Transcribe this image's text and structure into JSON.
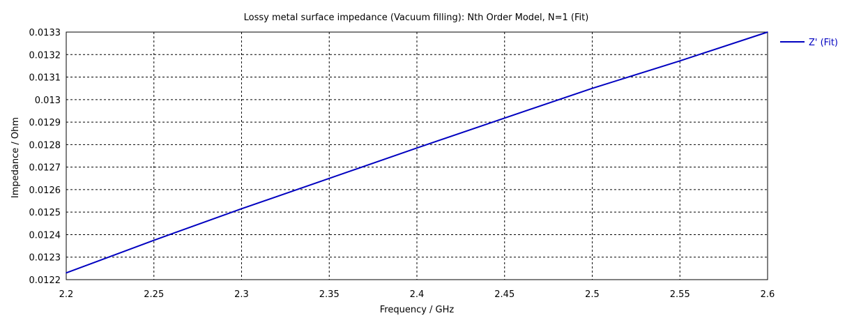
{
  "chart_data": {
    "type": "line",
    "title": "Lossy metal surface impedance (Vacuum filling): Nth Order Model, N=1 (Fit)",
    "xlabel": "Frequency / GHz",
    "ylabel": "Impedance / Ohm",
    "xlim": [
      2.2,
      2.6
    ],
    "ylim": [
      0.0122,
      0.0133
    ],
    "x_ticks": [
      "2.2",
      "2.25",
      "2.3",
      "2.35",
      "2.4",
      "2.45",
      "2.5",
      "2.55",
      "2.6"
    ],
    "y_ticks": [
      "0.0122",
      "0.0123",
      "0.0124",
      "0.0125",
      "0.0126",
      "0.0127",
      "0.0128",
      "0.0129",
      "0.013",
      "0.0131",
      "0.0132",
      "0.0133"
    ],
    "grid": true,
    "legend_position": "right",
    "series": [
      {
        "name": "Z' (Fit)",
        "color": "#0000c0",
        "x": [
          2.2,
          2.25,
          2.3,
          2.35,
          2.4,
          2.45,
          2.5,
          2.55,
          2.6
        ],
        "y": [
          0.01223,
          0.012375,
          0.012515,
          0.01265,
          0.012785,
          0.012918,
          0.01305,
          0.013172,
          0.0133
        ]
      }
    ]
  }
}
